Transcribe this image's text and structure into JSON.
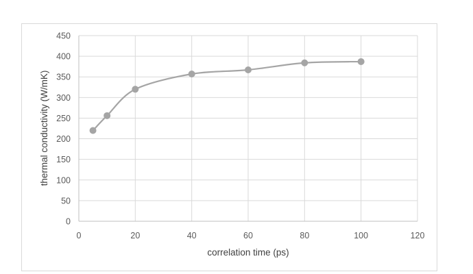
{
  "chart_data": {
    "type": "line",
    "title": "",
    "xlabel": "correlation time (ps)",
    "ylabel": "thermal conductivity (W/mK)",
    "xlim": [
      0,
      120
    ],
    "ylim": [
      0,
      450
    ],
    "xticks": [
      0,
      20,
      40,
      60,
      80,
      100,
      120
    ],
    "yticks": [
      0,
      50,
      100,
      150,
      200,
      250,
      300,
      350,
      400,
      450
    ],
    "grid": true,
    "legend": "none",
    "smooth": true,
    "series": [
      {
        "color": "#a5a5a5",
        "x": [
          5,
          10,
          20,
          40,
          60,
          80,
          100
        ],
        "y": [
          220,
          256,
          320,
          357,
          367,
          384,
          387
        ]
      }
    ]
  }
}
